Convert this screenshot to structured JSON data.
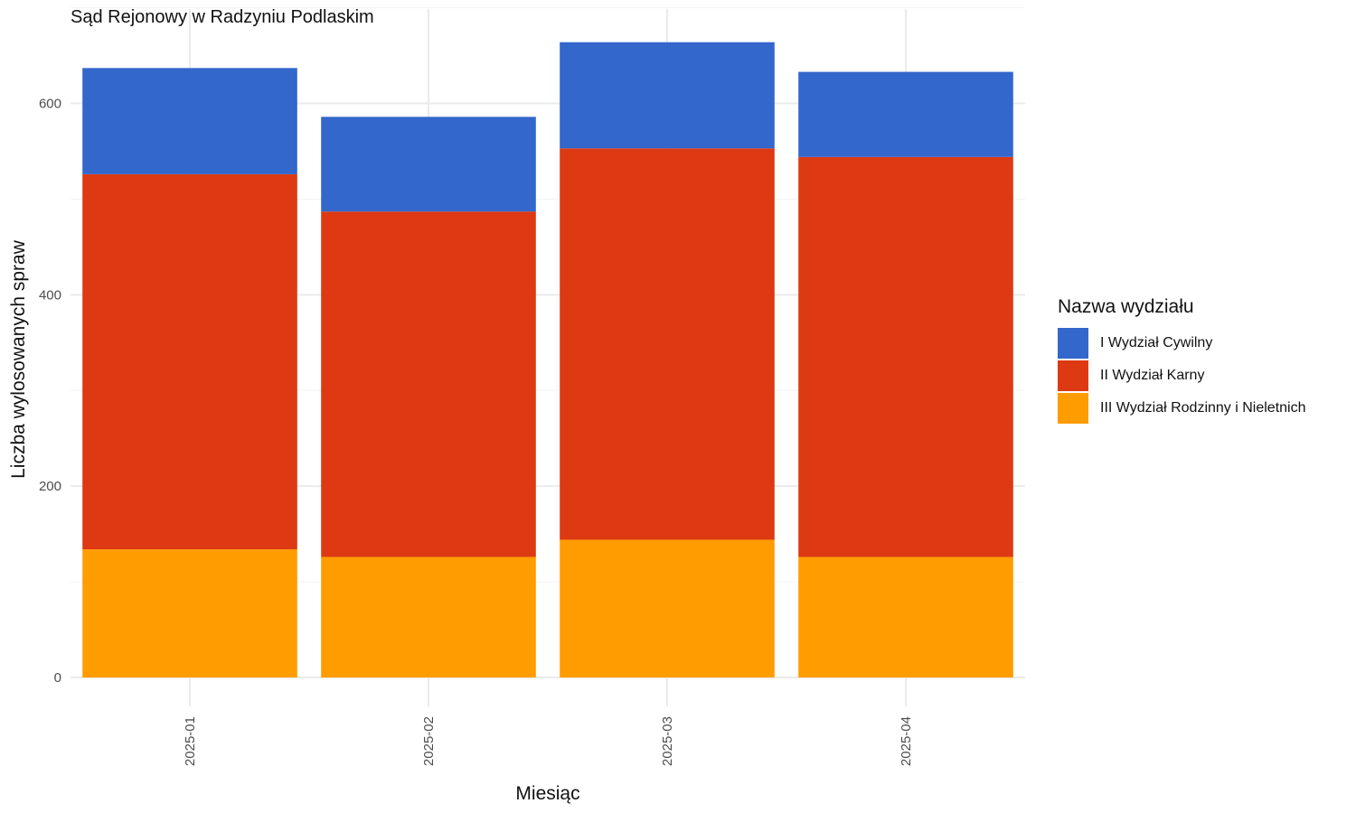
{
  "chart_data": {
    "type": "bar",
    "stacked": true,
    "title": "Sąd Rejonowy w Radzyniu Podlaskim",
    "xlabel": "Miesiąc",
    "ylabel": "Liczba wylosowanych spraw",
    "categories": [
      "2025-01",
      "2025-02",
      "2025-03",
      "2025-04"
    ],
    "series": [
      {
        "name": "III Wydział Rodzinny i Nieletnich",
        "color": "#ff9c00",
        "values": [
          134,
          126,
          144,
          126
        ]
      },
      {
        "name": "II Wydział Karny",
        "color": "#dd3912",
        "values": [
          392,
          361,
          409,
          418
        ]
      },
      {
        "name": "I Wydział Cywilny",
        "color": "#3367cc",
        "values": [
          111,
          99,
          111,
          89
        ]
      }
    ],
    "ylim": [
      0,
      700
    ],
    "yticks": [
      0,
      200,
      400,
      600
    ],
    "grid": true,
    "legend": {
      "title": "Nazwa wydziału",
      "placement": "right",
      "order": [
        "I Wydział Cywilny",
        "II Wydział Karny",
        "III Wydział Rodzinny i Nieletnich"
      ]
    }
  }
}
